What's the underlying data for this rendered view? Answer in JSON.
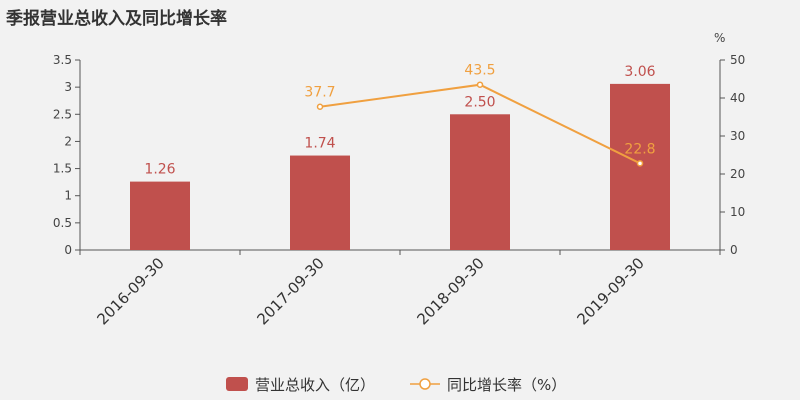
{
  "chart_data": {
    "type": "bar",
    "title": "季报营业总收入及同比增长率",
    "categories": [
      "2016-09-30",
      "2017-09-30",
      "2018-09-30",
      "2019-09-30"
    ],
    "series": [
      {
        "name": "营业总收入（亿）",
        "type": "bar",
        "axis": "left",
        "values": [
          1.26,
          1.74,
          2.5,
          3.06
        ],
        "labels": [
          "1.26",
          "1.74",
          "2.50",
          "3.06"
        ],
        "color": "#c0504d"
      },
      {
        "name": "同比增长率（%）",
        "type": "line",
        "axis": "right",
        "values": [
          null,
          37.7,
          43.5,
          22.8
        ],
        "labels": [
          "",
          "37.7",
          "43.5",
          "22.8"
        ],
        "color": "#f0a040"
      }
    ],
    "y_left": {
      "min": 0,
      "max": 3.5,
      "ticks": [
        0,
        0.5,
        1,
        1.5,
        2,
        2.5,
        3,
        3.5
      ],
      "tick_labels": [
        "0",
        "0.5",
        "1",
        "1.5",
        "2",
        "2.5",
        "3",
        "3.5"
      ]
    },
    "y_right": {
      "min": 0,
      "max": 50,
      "unit": "%",
      "ticks": [
        0,
        10,
        20,
        30,
        40,
        50
      ],
      "tick_labels": [
        "0",
        "10",
        "20",
        "30",
        "40",
        "50"
      ]
    },
    "grid": false,
    "legend_position": "bottom-center"
  }
}
